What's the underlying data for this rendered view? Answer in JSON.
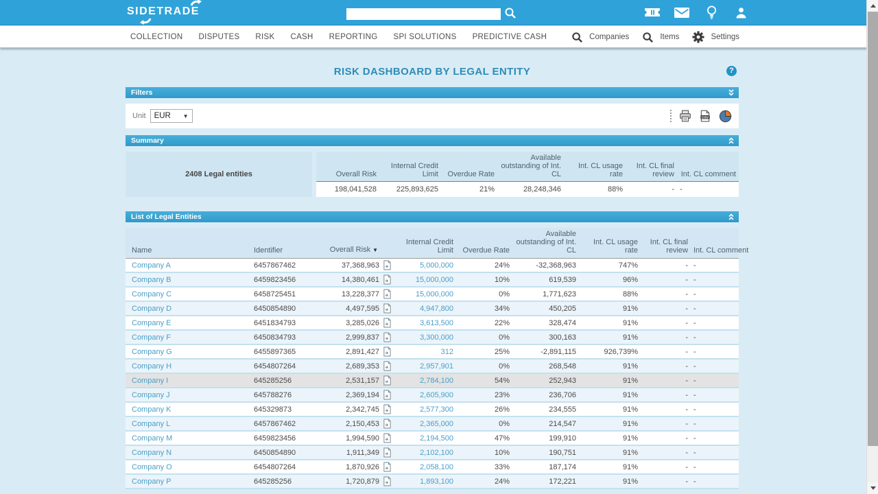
{
  "topbar": {
    "logo_text": "SIDETRADE",
    "search": {
      "value": ""
    },
    "icons": [
      "tickets-icon",
      "mail-icon",
      "lightbulb-icon",
      "user-icon"
    ]
  },
  "nav": {
    "items": [
      "COLLECTION",
      "DISPUTES",
      "RISK",
      "CASH",
      "REPORTING",
      "SPI SOLUTIONS",
      "PREDICTIVE CASH"
    ],
    "right": [
      {
        "icon": "search-icon",
        "label": "Companies"
      },
      {
        "icon": "search-icon",
        "label": "Items"
      },
      {
        "icon": "gear-icon",
        "label": "Settings"
      }
    ]
  },
  "page": {
    "title": "RISK DASHBOARD BY LEGAL ENTITY"
  },
  "filters": {
    "header": "Filters",
    "unit_label": "Unit",
    "unit_value": "EUR",
    "toolbar_icons": [
      "print-icon",
      "export-csv-icon",
      "pie-chart-icon"
    ]
  },
  "summary": {
    "header": "Summary",
    "entities_label": "2408 Legal entities",
    "columns": [
      "Overall Risk",
      "Internal Credit Limit",
      "Overdue Rate",
      "Available outstanding of Int. CL",
      "Int. CL usage rate",
      "Int. CL final review",
      "Int. CL comment"
    ],
    "values": {
      "overall_risk": "198,041,528",
      "internal_credit_limit": "225,893,625",
      "overdue_rate": "21%",
      "available_outstanding": "28,248,346",
      "usage_rate": "88%",
      "final_review": "-",
      "comment": "-"
    }
  },
  "list": {
    "header": "List of Legal Entities",
    "columns": [
      "Name",
      "Identifier",
      "Overall Risk",
      "Internal Credit Limit",
      "Overdue Rate",
      "Available outstanding of Int. CL",
      "Int. CL usage rate",
      "Int. CL final review",
      "Int. CL comment"
    ],
    "sort": {
      "column": "Overall Risk",
      "direction": "desc"
    },
    "rows": [
      {
        "name": "Company A",
        "identifier": "6457867462",
        "overall_risk": "37,368,963",
        "internal_credit_limit": "5,000,000",
        "overdue_rate": "24%",
        "available_outstanding": "-32,368,963",
        "usage_rate": "747%",
        "final_review": "-",
        "comment": "-"
      },
      {
        "name": "Company B",
        "identifier": "6459823456",
        "overall_risk": "14,380,461",
        "internal_credit_limit": "15,000,000",
        "overdue_rate": "10%",
        "available_outstanding": "619,539",
        "usage_rate": "96%",
        "final_review": "-",
        "comment": "-"
      },
      {
        "name": "Company C",
        "identifier": "6458725451",
        "overall_risk": "13,228,377",
        "internal_credit_limit": "15,000,000",
        "overdue_rate": "0%",
        "available_outstanding": "1,771,623",
        "usage_rate": "88%",
        "final_review": "-",
        "comment": "-"
      },
      {
        "name": "Company D",
        "identifier": "6450854890",
        "overall_risk": "4,497,595",
        "internal_credit_limit": "4,947,800",
        "overdue_rate": "34%",
        "available_outstanding": "450,205",
        "usage_rate": "91%",
        "final_review": "-",
        "comment": "-"
      },
      {
        "name": "Company E",
        "identifier": "6451834793",
        "overall_risk": "3,285,026",
        "internal_credit_limit": "3,613,500",
        "overdue_rate": "22%",
        "available_outstanding": "328,474",
        "usage_rate": "91%",
        "final_review": "-",
        "comment": "-"
      },
      {
        "name": "Company F",
        "identifier": "6450834793",
        "overall_risk": "2,999,837",
        "internal_credit_limit": "3,300,000",
        "overdue_rate": "0%",
        "available_outstanding": "300,163",
        "usage_rate": "91%",
        "final_review": "-",
        "comment": "-"
      },
      {
        "name": "Company G",
        "identifier": "6455897365",
        "overall_risk": "2,891,427",
        "internal_credit_limit": "312",
        "overdue_rate": "25%",
        "available_outstanding": "-2,891,115",
        "usage_rate": "926,739%",
        "final_review": "-",
        "comment": "-"
      },
      {
        "name": "Company H",
        "identifier": "6454807264",
        "overall_risk": "2,689,353",
        "internal_credit_limit": "2,957,901",
        "overdue_rate": "0%",
        "available_outstanding": "268,548",
        "usage_rate": "91%",
        "final_review": "-",
        "comment": "-"
      },
      {
        "name": "Company I",
        "identifier": "645285256",
        "overall_risk": "2,531,157",
        "internal_credit_limit": "2,784,100",
        "overdue_rate": "54%",
        "available_outstanding": "252,943",
        "usage_rate": "91%",
        "final_review": "-",
        "comment": "-",
        "highlighted": true
      },
      {
        "name": "Company J",
        "identifier": "645788276",
        "overall_risk": "2,369,194",
        "internal_credit_limit": "2,605,900",
        "overdue_rate": "23%",
        "available_outstanding": "236,706",
        "usage_rate": "91%",
        "final_review": "-",
        "comment": "-"
      },
      {
        "name": "Company K",
        "identifier": "645329873",
        "overall_risk": "2,342,745",
        "internal_credit_limit": "2,577,300",
        "overdue_rate": "26%",
        "available_outstanding": "234,555",
        "usage_rate": "91%",
        "final_review": "-",
        "comment": "-"
      },
      {
        "name": "Company L",
        "identifier": "6457867462",
        "overall_risk": "2,150,453",
        "internal_credit_limit": "2,365,000",
        "overdue_rate": "0%",
        "available_outstanding": "214,547",
        "usage_rate": "91%",
        "final_review": "-",
        "comment": "-"
      },
      {
        "name": "Company M",
        "identifier": "6459823456",
        "overall_risk": "1,994,590",
        "internal_credit_limit": "2,194,500",
        "overdue_rate": "47%",
        "available_outstanding": "199,910",
        "usage_rate": "91%",
        "final_review": "-",
        "comment": "-"
      },
      {
        "name": "Company N",
        "identifier": "6450854890",
        "overall_risk": "1,911,349",
        "internal_credit_limit": "2,102,100",
        "overdue_rate": "10%",
        "available_outstanding": "190,751",
        "usage_rate": "91%",
        "final_review": "-",
        "comment": "-"
      },
      {
        "name": "Company O",
        "identifier": "6454807264",
        "overall_risk": "1,870,926",
        "internal_credit_limit": "2,058,100",
        "overdue_rate": "33%",
        "available_outstanding": "187,174",
        "usage_rate": "91%",
        "final_review": "-",
        "comment": "-"
      },
      {
        "name": "Company P",
        "identifier": "645285256",
        "overall_risk": "1,720,879",
        "internal_credit_limit": "1,893,100",
        "overdue_rate": "24%",
        "available_outstanding": "172,221",
        "usage_rate": "91%",
        "final_review": "-",
        "comment": "-"
      }
    ]
  },
  "colors": {
    "topbar": "#2fa3d9",
    "panel_header": "#3aa5d6",
    "link": "#4a9ec7",
    "content_bg": "#d9ecf6",
    "row_alt": "#ebf4fa",
    "highlight_row": "#e3e3e3"
  }
}
